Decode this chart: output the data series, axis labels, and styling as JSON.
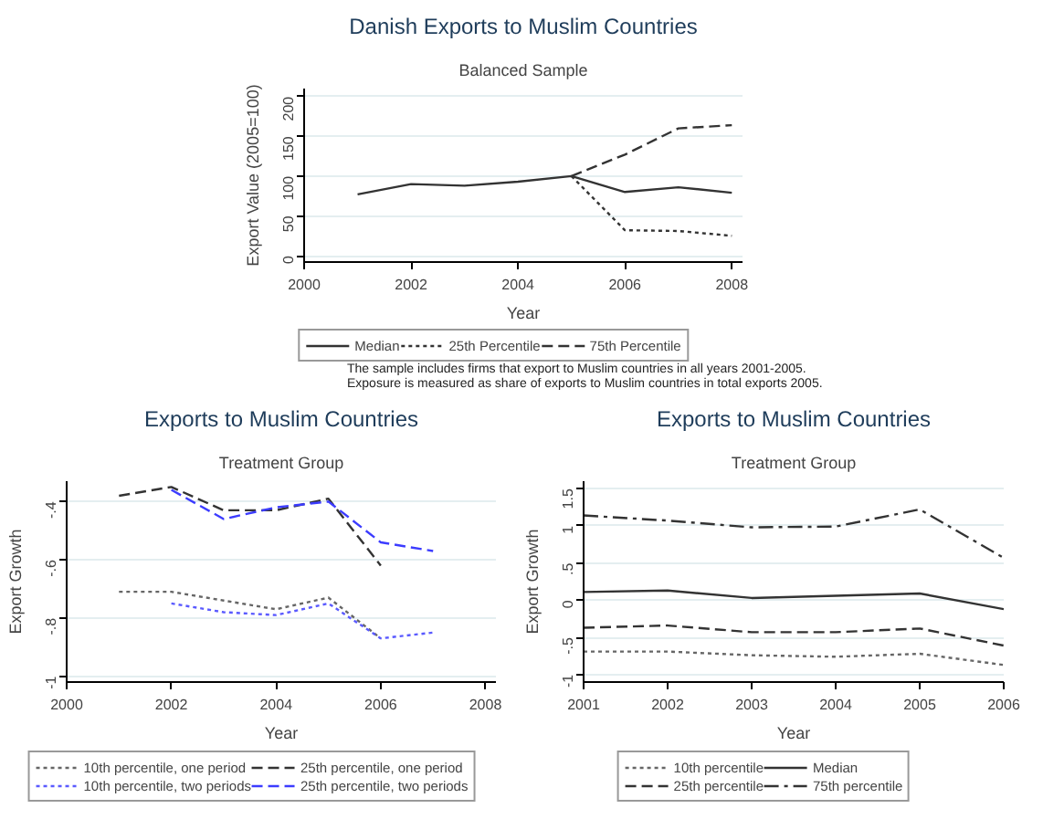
{
  "chart_data": [
    {
      "type": "line",
      "title": "Danish Exports to Muslim Countries",
      "subtitle": "Balanced Sample",
      "xlabel": "Year",
      "ylabel": "Export Value (2005=100)",
      "xlim": [
        2000,
        2008.2
      ],
      "xticks": [
        2000,
        2002,
        2004,
        2006,
        2008
      ],
      "ylim": [
        -8,
        210
      ],
      "yticks": [
        0,
        50,
        100,
        150,
        200
      ],
      "grid": "y",
      "legend": "bottom",
      "series": [
        {
          "name": "Median",
          "color": "#333333",
          "line_style": "solid",
          "x": [
            2001,
            2002,
            2003,
            2004,
            2005,
            2006,
            2007,
            2008
          ],
          "values": [
            77,
            90,
            88,
            93,
            100,
            80,
            86,
            79
          ]
        },
        {
          "name": "25th Percentile",
          "color": "#333333",
          "line_style": "dotted",
          "x": [
            2005,
            2006,
            2007,
            2008
          ],
          "values": [
            100,
            32,
            31,
            25
          ]
        },
        {
          "name": "75th Percentile",
          "color": "#333333",
          "line_style": "dashed",
          "x": [
            2005,
            2006,
            2007,
            2008
          ],
          "values": [
            100,
            127,
            160,
            164
          ]
        }
      ],
      "annotations": [
        "The sample includes firms that export to Muslim countries in all years 2001-2005.",
        "Exposure is measured as share of exports to Muslim countries in total exports 2005."
      ]
    },
    {
      "type": "line",
      "title": "Exports to Muslim Countries",
      "subtitle": "Treatment Group",
      "xlabel": "Year",
      "ylabel": "Export Growth",
      "xlim": [
        2000,
        2008.2
      ],
      "xticks": [
        2000,
        2002,
        2004,
        2006,
        2008
      ],
      "ylim": [
        -1.02,
        -0.33
      ],
      "yticks": [
        {
          "value": -1,
          "label": "-1"
        },
        {
          "value": -0.8,
          "label": "-.8"
        },
        {
          "value": -0.6,
          "label": "-.6"
        },
        {
          "value": -0.4,
          "label": "-.4"
        }
      ],
      "grid": "y",
      "legend": "bottom",
      "series": [
        {
          "name": "10th percentile, one period",
          "color": "#666666",
          "line_style": "dotted",
          "x": [
            2001,
            2002,
            2003,
            2004,
            2005,
            2006
          ],
          "values": [
            -0.71,
            -0.71,
            -0.74,
            -0.77,
            -0.73,
            -0.87
          ]
        },
        {
          "name": "10th percentile, two periods",
          "color": "#5a5aff",
          "line_style": "dotted",
          "x": [
            2002,
            2003,
            2004,
            2005,
            2006,
            2007
          ],
          "values": [
            -0.75,
            -0.78,
            -0.79,
            -0.75,
            -0.87,
            -0.85
          ]
        },
        {
          "name": "25th percentile, one period",
          "color": "#333333",
          "line_style": "dashed",
          "x": [
            2001,
            2002,
            2003,
            2004,
            2005,
            2006
          ],
          "values": [
            -0.38,
            -0.35,
            -0.43,
            -0.43,
            -0.39,
            -0.62
          ]
        },
        {
          "name": "25th percentile, two periods",
          "color": "#3c3cff",
          "line_style": "dashed",
          "x": [
            2002,
            2003,
            2004,
            2005,
            2006,
            2007
          ],
          "values": [
            -0.36,
            -0.46,
            -0.42,
            -0.4,
            -0.54,
            -0.57
          ]
        }
      ]
    },
    {
      "type": "line",
      "title": "Exports to Muslim Countries",
      "subtitle": "Treatment Group",
      "xlabel": "Year",
      "ylabel": "Export Growth",
      "xlim": [
        2001,
        2006
      ],
      "xticks": [
        2001,
        2002,
        2003,
        2004,
        2005,
        2006
      ],
      "ylim": [
        -1.1,
        1.6
      ],
      "yticks": [
        {
          "value": -1,
          "label": "-1"
        },
        {
          "value": -0.5,
          "label": "-.5"
        },
        0,
        {
          "value": 0.5,
          "label": ".5"
        },
        1,
        1.5
      ],
      "grid": "y",
      "legend": "bottom",
      "series": [
        {
          "name": "10th percentile",
          "color": "#666666",
          "line_style": "dotted",
          "values": [
            -0.69,
            -0.69,
            -0.74,
            -0.76,
            -0.72,
            -0.87
          ]
        },
        {
          "name": "25th percentile",
          "color": "#333333",
          "line_style": "dashed",
          "values": [
            -0.37,
            -0.34,
            -0.43,
            -0.43,
            -0.38,
            -0.61
          ]
        },
        {
          "name": "Median",
          "color": "#333333",
          "line_style": "solid",
          "values": [
            0.11,
            0.13,
            0.03,
            0.06,
            0.09,
            -0.12
          ]
        },
        {
          "name": "75th percentile",
          "color": "#333333",
          "line_style": "dashdot",
          "values": [
            1.14,
            1.07,
            0.98,
            0.99,
            1.22,
            0.57
          ]
        }
      ],
      "x": [
        2001,
        2002,
        2003,
        2004,
        2005,
        2006
      ]
    }
  ]
}
